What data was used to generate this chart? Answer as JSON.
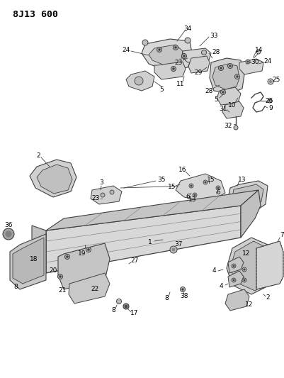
{
  "title": "8J13 600",
  "bg_color": "#ffffff",
  "lc": "#404040",
  "fig_width": 4.02,
  "fig_height": 5.33,
  "dpi": 100
}
